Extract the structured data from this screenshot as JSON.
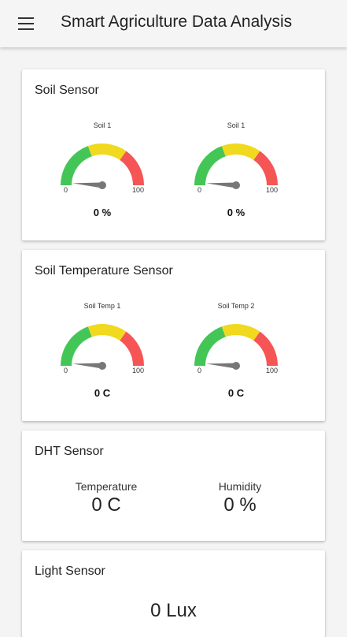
{
  "app": {
    "title": "Smart Agriculture Data Analysis",
    "menu_icon": "hamburger-menu-icon"
  },
  "soil": {
    "title": "Soil Sensor",
    "gauges": [
      {
        "label": "Soil 1",
        "min": "0",
        "max": "100",
        "value": 0,
        "display": "0 %"
      },
      {
        "label": "Soil 1",
        "min": "0",
        "max": "100",
        "value": 0,
        "display": "0 %"
      }
    ]
  },
  "soil_temp": {
    "title": "Soil Temperature Sensor",
    "gauges": [
      {
        "label": "Soil Temp 1",
        "min": "0",
        "max": "100",
        "value": 0,
        "display": "0 C"
      },
      {
        "label": "Soil Temp 2",
        "min": "0",
        "max": "100",
        "value": 0,
        "display": "0 C"
      }
    ]
  },
  "dht": {
    "title": "DHT Sensor",
    "temperature_label": "Temperature",
    "temperature_value": "0 C",
    "humidity_label": "Humidity",
    "humidity_value": "0 %"
  },
  "light": {
    "title": "Light Sensor",
    "value": "0 Lux"
  },
  "colors": {
    "green": "#44c657",
    "yellow": "#f0d91e",
    "red": "#f55555",
    "needle": "#777777"
  }
}
